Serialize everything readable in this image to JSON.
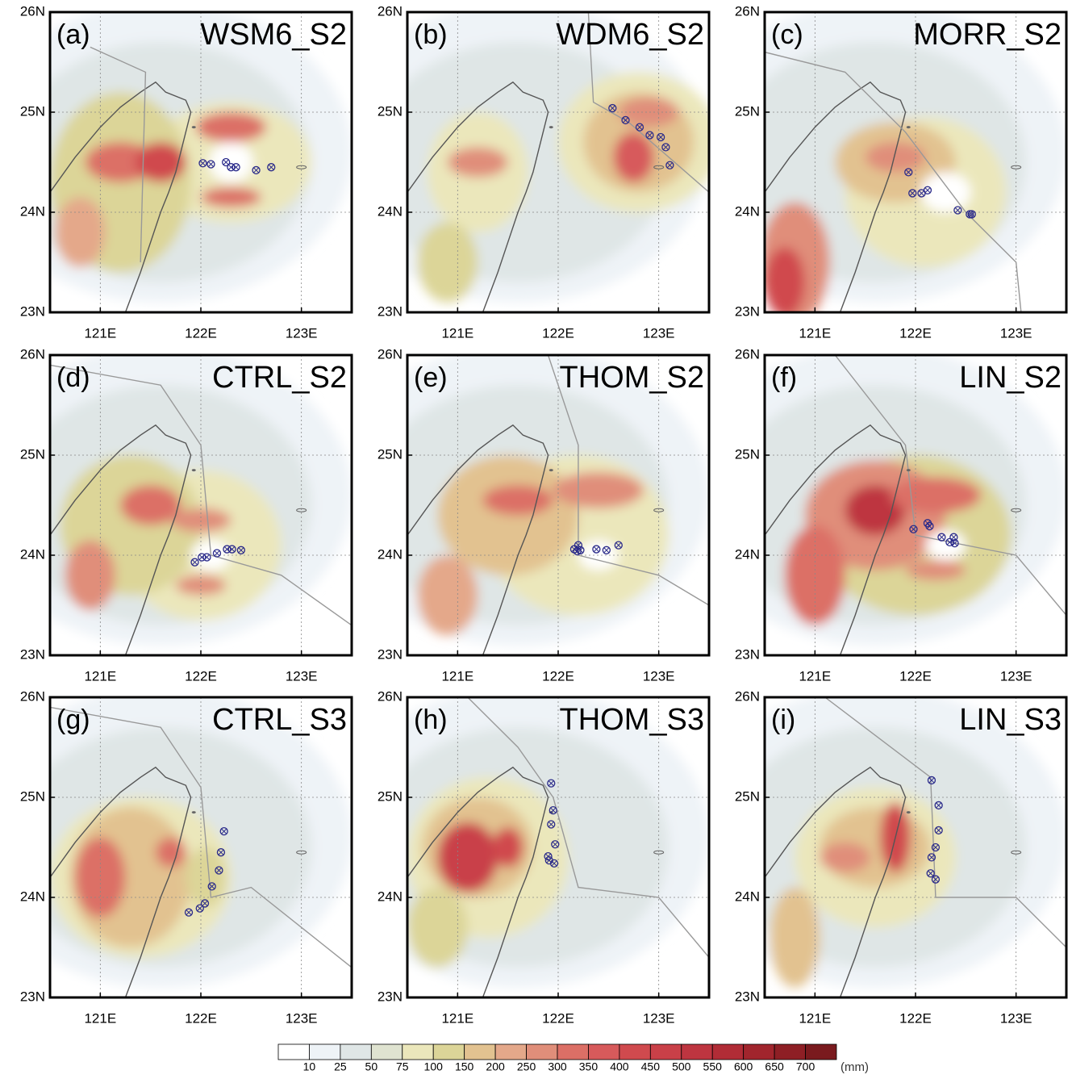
{
  "axes": {
    "xlim": [
      120.5,
      123.5
    ],
    "ylim": [
      23,
      26
    ],
    "xticks": [
      {
        "value": 121,
        "label": "121E"
      },
      {
        "value": 122,
        "label": "122E"
      },
      {
        "value": 123,
        "label": "123E"
      }
    ],
    "yticks": [
      {
        "value": 23,
        "label": "23N"
      },
      {
        "value": 24,
        "label": "24N"
      },
      {
        "value": 25,
        "label": "25N"
      },
      {
        "value": 26,
        "label": "26N"
      }
    ]
  },
  "panels": [
    {
      "label": "(a)",
      "title": "WSM6_S2",
      "track": {
        "lon": [
          122.02,
          122.1,
          122.25,
          122.3,
          122.35,
          122.55,
          122.7
        ],
        "lat": [
          24.49,
          24.48,
          24.5,
          24.45,
          24.45,
          24.42,
          24.45
        ]
      }
    },
    {
      "label": "(b)",
      "title": "WDM6_S2",
      "track": {
        "lon": [
          122.54,
          122.67,
          122.81,
          122.91,
          123.02,
          123.07,
          123.11
        ],
        "lat": [
          25.04,
          24.92,
          24.85,
          24.77,
          24.75,
          24.65,
          24.47
        ]
      }
    },
    {
      "label": "(c)",
      "title": "MORR_S2",
      "track": {
        "lon": [
          121.93,
          121.97,
          122.06,
          122.12,
          122.42,
          122.54,
          122.56
        ],
        "lat": [
          24.4,
          24.19,
          24.19,
          24.22,
          24.02,
          23.98,
          23.98
        ]
      }
    },
    {
      "label": "(d)",
      "title": "CTRL_S2",
      "track": {
        "lon": [
          121.94,
          122.01,
          122.06,
          122.16,
          122.26,
          122.31,
          122.4
        ],
        "lat": [
          23.93,
          23.98,
          23.98,
          24.02,
          24.06,
          24.06,
          24.05
        ]
      }
    },
    {
      "label": "(e)",
      "title": "THOM_S2",
      "track": {
        "lon": [
          122.16,
          122.2,
          122.19,
          122.22,
          122.38,
          122.48,
          122.6
        ],
        "lat": [
          24.06,
          24.1,
          24.04,
          24.05,
          24.06,
          24.05,
          24.1
        ]
      }
    },
    {
      "label": "(f)",
      "title": "LIN_S2",
      "track": {
        "lon": [
          121.98,
          122.12,
          122.14,
          122.26,
          122.34,
          122.38,
          122.39
        ],
        "lat": [
          24.26,
          24.32,
          24.29,
          24.18,
          24.13,
          24.18,
          24.12
        ]
      }
    },
    {
      "label": "(g)",
      "title": "CTRL_S3",
      "track": {
        "lon": [
          122.23,
          122.2,
          122.18,
          122.11,
          122.04,
          121.99,
          121.88
        ],
        "lat": [
          24.66,
          24.45,
          24.27,
          24.11,
          23.94,
          23.89,
          23.85
        ]
      }
    },
    {
      "label": "(h)",
      "title": "THOM_S3",
      "track": {
        "lon": [
          121.93,
          121.95,
          121.93,
          121.97,
          121.9,
          121.91,
          121.96
        ],
        "lat": [
          25.14,
          24.87,
          24.73,
          24.53,
          24.41,
          24.37,
          24.34
        ]
      }
    },
    {
      "label": "(i)",
      "title": "LIN_S3",
      "track": {
        "lon": [
          122.16,
          122.23,
          122.23,
          122.2,
          122.16,
          122.15,
          122.2
        ],
        "lat": [
          25.17,
          24.92,
          24.67,
          24.5,
          24.4,
          24.24,
          24.18
        ]
      }
    }
  ],
  "colorbar": {
    "levels": [
      10,
      25,
      50,
      75,
      100,
      150,
      200,
      250,
      300,
      350,
      400,
      450,
      500,
      550,
      600,
      650,
      700
    ],
    "colors": [
      "#ffffff",
      "#eef3f7",
      "#dfe6e6",
      "#dfe3d0",
      "#ebe7bb",
      "#dcd598",
      "#e2c290",
      "#e4a88a",
      "#e08e7a",
      "#dc6f66",
      "#d75a5b",
      "#d04a4e",
      "#c94048",
      "#be3540",
      "#b12c36",
      "#a1252d",
      "#8e1f25",
      "#7a1a1e"
    ],
    "unit": "(mm)"
  }
}
